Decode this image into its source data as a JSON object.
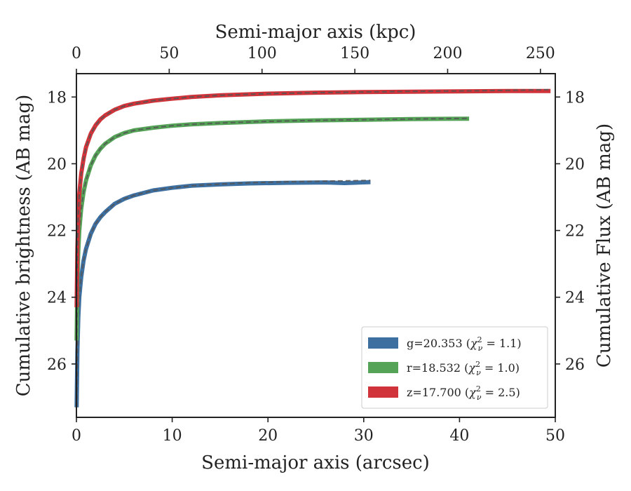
{
  "chart_data": {
    "type": "line",
    "xlabel_bottom": "Semi-major axis (arcsec)",
    "xlabel_top": "Semi-major axis (kpc)",
    "ylabel_left": "Cumulative brightness (AB mag)",
    "ylabel_right": "Cumulative Flux (AB mag)",
    "xlim": [
      0,
      50
    ],
    "ylim": [
      27.6,
      17.3
    ],
    "y_inverted": true,
    "top_xlim": [
      0,
      258
    ],
    "xticks": [
      0,
      10,
      20,
      30,
      40,
      50
    ],
    "top_xticks": [
      0,
      50,
      100,
      150,
      200,
      250
    ],
    "yticks": [
      18,
      20,
      22,
      24,
      26
    ],
    "grid": false,
    "legend_position": "lower-right",
    "series": [
      {
        "name": "g=20.353",
        "chi2": "1.1",
        "color": "#3d6fa0",
        "x": [
          0.02,
          0.1,
          0.2,
          0.3,
          0.5,
          0.75,
          1.0,
          1.5,
          2.0,
          2.5,
          3.0,
          4.0,
          5.0,
          6.0,
          8.0,
          10.0,
          12.0,
          15.0,
          18.0,
          22.0,
          26.0,
          28.0,
          30.7
        ],
        "values": [
          27.3,
          25.6,
          24.6,
          24.0,
          23.4,
          22.9,
          22.55,
          22.1,
          21.8,
          21.6,
          21.45,
          21.2,
          21.05,
          20.95,
          20.8,
          20.72,
          20.66,
          20.62,
          20.59,
          20.57,
          20.56,
          20.58,
          20.55
        ],
        "model_x": [
          0.02,
          0.1,
          0.2,
          0.3,
          0.5,
          0.75,
          1.0,
          1.5,
          2.0,
          2.5,
          3.0,
          4.0,
          5.0,
          6.0,
          8.0,
          10.0,
          12.0,
          15.0,
          18.0,
          22.0,
          26.0,
          30.7
        ],
        "model_values": [
          27.3,
          25.6,
          24.6,
          24.0,
          23.4,
          22.9,
          22.55,
          22.1,
          21.8,
          21.6,
          21.45,
          21.2,
          21.05,
          20.95,
          20.8,
          20.72,
          20.66,
          20.61,
          20.57,
          20.54,
          20.52,
          20.5
        ]
      },
      {
        "name": "r=18.532",
        "chi2": "1.0",
        "color": "#55a357",
        "x": [
          0.02,
          0.1,
          0.2,
          0.3,
          0.5,
          0.75,
          1.0,
          1.5,
          2.0,
          2.5,
          3.0,
          4.0,
          5.0,
          6.0,
          8.0,
          10.0,
          12.0,
          15.0,
          20.0,
          25.0,
          30.0,
          35.0,
          41.0
        ],
        "values": [
          25.3,
          23.5,
          22.6,
          22.0,
          21.35,
          20.85,
          20.5,
          20.05,
          19.75,
          19.55,
          19.4,
          19.2,
          19.08,
          19.0,
          18.92,
          18.86,
          18.82,
          18.78,
          18.73,
          18.7,
          18.68,
          18.66,
          18.65
        ],
        "model_x": [
          0.02,
          0.1,
          0.2,
          0.3,
          0.5,
          0.75,
          1.0,
          1.5,
          2.0,
          2.5,
          3.0,
          4.0,
          5.0,
          6.0,
          8.0,
          10.0,
          12.0,
          15.0,
          20.0,
          25.0,
          30.0,
          35.0,
          41.0
        ],
        "model_values": [
          25.3,
          23.5,
          22.6,
          22.0,
          21.35,
          20.85,
          20.5,
          20.05,
          19.75,
          19.55,
          19.4,
          19.2,
          19.08,
          19.0,
          18.92,
          18.86,
          18.82,
          18.78,
          18.73,
          18.7,
          18.68,
          18.66,
          18.64
        ]
      },
      {
        "name": "z=17.700",
        "chi2": "2.5",
        "color": "#d0343a",
        "x": [
          0.02,
          0.1,
          0.2,
          0.3,
          0.5,
          0.75,
          1.0,
          1.5,
          2.0,
          2.5,
          3.0,
          4.0,
          5.0,
          6.0,
          8.0,
          10.0,
          12.0,
          15.0,
          20.0,
          25.0,
          30.0,
          35.0,
          40.0,
          45.0,
          49.5
        ],
        "values": [
          24.3,
          22.5,
          21.5,
          20.9,
          20.3,
          19.85,
          19.5,
          19.1,
          18.85,
          18.67,
          18.55,
          18.38,
          18.27,
          18.2,
          18.11,
          18.05,
          18.0,
          17.95,
          17.9,
          17.87,
          17.85,
          17.84,
          17.83,
          17.82,
          17.82
        ],
        "model_x": [
          0.02,
          0.1,
          0.2,
          0.3,
          0.5,
          0.75,
          1.0,
          1.5,
          2.0,
          2.5,
          3.0,
          4.0,
          5.0,
          6.0,
          8.0,
          10.0,
          12.0,
          15.0,
          20.0,
          25.0,
          30.0,
          35.0,
          40.0,
          45.0,
          49.5
        ],
        "model_values": [
          24.3,
          22.5,
          21.5,
          20.9,
          20.3,
          19.85,
          19.5,
          19.1,
          18.85,
          18.67,
          18.55,
          18.38,
          18.27,
          18.2,
          18.11,
          18.05,
          18.0,
          17.95,
          17.9,
          17.87,
          17.85,
          17.83,
          17.82,
          17.8,
          17.78
        ]
      }
    ]
  }
}
